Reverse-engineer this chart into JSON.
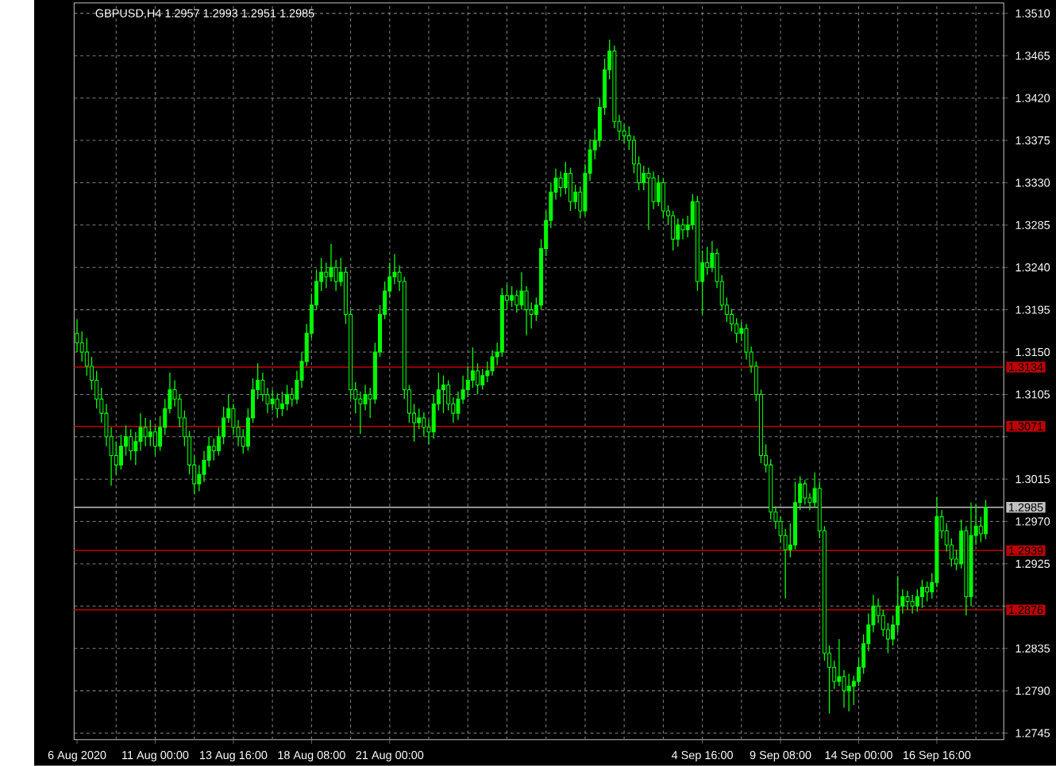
{
  "chart_data": {
    "type": "candlestick",
    "title": "GBPUSD,H4  1.2957 1.2993 1.2951 1.2985",
    "color": "#00ff00",
    "grid": true,
    "categories": [
      "6 Aug 2020",
      null,
      null,
      null,
      null,
      null,
      null,
      null,
      null,
      null,
      null,
      null,
      null,
      null,
      null,
      null,
      "11 Aug 00:00",
      null,
      null,
      null,
      null,
      null,
      null,
      null,
      null,
      null,
      null,
      null,
      null,
      null,
      null,
      null,
      "13 Aug 16:00",
      null,
      null,
      null,
      null,
      null,
      null,
      null,
      null,
      null,
      null,
      null,
      null,
      null,
      null,
      null,
      "18 Aug 08:00",
      null,
      null,
      null,
      null,
      null,
      null,
      null,
      null,
      null,
      null,
      null,
      null,
      null,
      null,
      null,
      "21 Aug 00:00",
      null,
      null,
      null,
      null,
      null,
      null,
      null,
      null,
      null,
      null,
      null,
      null,
      null,
      null,
      null,
      null,
      null,
      null,
      null,
      null,
      null,
      null,
      null,
      null,
      null,
      null,
      null,
      null,
      null,
      null,
      null,
      null,
      null,
      null,
      null,
      null,
      null,
      null,
      null,
      null,
      null,
      null,
      null,
      null,
      null,
      null,
      null,
      null,
      null,
      null,
      null,
      null,
      null,
      null,
      null,
      null,
      null,
      null,
      null,
      null,
      null,
      null,
      null,
      "4 Sep 16:00",
      null,
      null,
      null,
      null,
      null,
      null,
      null,
      null,
      null,
      null,
      null,
      null,
      null,
      null,
      null,
      "9 Sep 08:00",
      null,
      null,
      null,
      null,
      null,
      null,
      null,
      null,
      null,
      null,
      null,
      null,
      null,
      null,
      null,
      "14 Sep 00:00",
      null,
      null,
      null,
      null,
      null,
      null,
      null,
      null,
      null,
      null,
      null,
      null,
      null,
      null,
      null,
      "16 Sep 16:00",
      null,
      null,
      null,
      null,
      null,
      null,
      null,
      null,
      null,
      null
    ],
    "ohlc": [
      [
        1.317,
        1.3185,
        1.315,
        1.316
      ],
      [
        1.316,
        1.3172,
        1.314,
        1.315
      ],
      [
        1.315,
        1.3165,
        1.3125,
        1.3135
      ],
      [
        1.3135,
        1.3145,
        1.311,
        1.312
      ],
      [
        1.312,
        1.313,
        1.309,
        1.31
      ],
      [
        1.31,
        1.3112,
        1.3075,
        1.3085
      ],
      [
        1.3085,
        1.3095,
        1.305,
        1.306
      ],
      [
        1.306,
        1.307,
        1.3008,
        1.304
      ],
      [
        1.304,
        1.3055,
        1.302,
        1.303
      ],
      [
        1.303,
        1.3062,
        1.3025,
        1.305
      ],
      [
        1.305,
        1.3072,
        1.304,
        1.306
      ],
      [
        1.306,
        1.3068,
        1.3035,
        1.3045
      ],
      [
        1.3045,
        1.3065,
        1.303,
        1.3055
      ],
      [
        1.3055,
        1.3085,
        1.3045,
        1.307
      ],
      [
        1.307,
        1.308,
        1.305,
        1.306
      ],
      [
        1.306,
        1.3078,
        1.305,
        1.3065
      ],
      [
        1.3065,
        1.3072,
        1.304,
        1.305
      ],
      [
        1.305,
        1.3082,
        1.3045,
        1.307
      ],
      [
        1.307,
        1.31,
        1.3062,
        1.309
      ],
      [
        1.309,
        1.3128,
        1.3085,
        1.311
      ],
      [
        1.311,
        1.312,
        1.3092,
        1.31
      ],
      [
        1.31,
        1.3105,
        1.307,
        1.308
      ],
      [
        1.308,
        1.3088,
        1.305,
        1.306
      ],
      [
        1.306,
        1.3066,
        1.302,
        1.303
      ],
      [
        1.303,
        1.304,
        1.2999,
        1.301
      ],
      [
        1.301,
        1.303,
        1.3002,
        1.302
      ],
      [
        1.302,
        1.3045,
        1.3012,
        1.3035
      ],
      [
        1.3035,
        1.306,
        1.3028,
        1.305
      ],
      [
        1.305,
        1.3058,
        1.3035,
        1.3045
      ],
      [
        1.3045,
        1.307,
        1.304,
        1.306
      ],
      [
        1.306,
        1.3092,
        1.3052,
        1.308
      ],
      [
        1.308,
        1.3105,
        1.3075,
        1.309
      ],
      [
        1.309,
        1.3095,
        1.3062,
        1.307
      ],
      [
        1.307,
        1.3078,
        1.305,
        1.306
      ],
      [
        1.306,
        1.3068,
        1.3042,
        1.305
      ],
      [
        1.305,
        1.309,
        1.3045,
        1.308
      ],
      [
        1.308,
        1.3122,
        1.3075,
        1.311
      ],
      [
        1.311,
        1.3138,
        1.31,
        1.312
      ],
      [
        1.312,
        1.3128,
        1.3098,
        1.3105
      ],
      [
        1.3105,
        1.3112,
        1.3085,
        1.3095
      ],
      [
        1.3095,
        1.311,
        1.3088,
        1.31
      ],
      [
        1.31,
        1.3106,
        1.308,
        1.309
      ],
      [
        1.309,
        1.3108,
        1.3082,
        1.3095
      ],
      [
        1.3095,
        1.3115,
        1.3088,
        1.3105
      ],
      [
        1.3105,
        1.3112,
        1.3092,
        1.31
      ],
      [
        1.31,
        1.313,
        1.3095,
        1.312
      ],
      [
        1.312,
        1.315,
        1.3112,
        1.314
      ],
      [
        1.314,
        1.318,
        1.3135,
        1.317
      ],
      [
        1.317,
        1.3212,
        1.3165,
        1.32
      ],
      [
        1.32,
        1.3238,
        1.3195,
        1.3225
      ],
      [
        1.3225,
        1.325,
        1.3215,
        1.3235
      ],
      [
        1.3235,
        1.3245,
        1.3218,
        1.323
      ],
      [
        1.323,
        1.3265,
        1.3225,
        1.324
      ],
      [
        1.324,
        1.3248,
        1.3215,
        1.3225
      ],
      [
        1.3225,
        1.325,
        1.322,
        1.3235
      ],
      [
        1.3235,
        1.324,
        1.318,
        1.319
      ],
      [
        1.319,
        1.3195,
        1.31,
        1.311
      ],
      [
        1.311,
        1.3118,
        1.3085,
        1.31
      ],
      [
        1.31,
        1.3108,
        1.3063,
        1.3095
      ],
      [
        1.3095,
        1.3115,
        1.3088,
        1.3105
      ],
      [
        1.3105,
        1.3112,
        1.308,
        1.31
      ],
      [
        1.31,
        1.316,
        1.3095,
        1.315
      ],
      [
        1.315,
        1.32,
        1.3145,
        1.319
      ],
      [
        1.319,
        1.3225,
        1.3185,
        1.3215
      ],
      [
        1.3215,
        1.3245,
        1.3208,
        1.323
      ],
      [
        1.323,
        1.3254,
        1.3222,
        1.3235
      ],
      [
        1.3235,
        1.3242,
        1.3215,
        1.3225
      ],
      [
        1.3225,
        1.323,
        1.31,
        1.311
      ],
      [
        1.311,
        1.3115,
        1.3075,
        1.3085
      ],
      [
        1.3085,
        1.3095,
        1.3055,
        1.3075
      ],
      [
        1.3075,
        1.309,
        1.3068,
        1.308
      ],
      [
        1.308,
        1.3086,
        1.306,
        1.307
      ],
      [
        1.307,
        1.3078,
        1.3052,
        1.3065
      ],
      [
        1.3065,
        1.3105,
        1.3058,
        1.3095
      ],
      [
        1.3095,
        1.3128,
        1.3088,
        1.311
      ],
      [
        1.311,
        1.3125,
        1.3085,
        1.3115
      ],
      [
        1.3115,
        1.312,
        1.3088,
        1.3095
      ],
      [
        1.3095,
        1.3102,
        1.3075,
        1.3085
      ],
      [
        1.3085,
        1.3108,
        1.3078,
        1.31
      ],
      [
        1.31,
        1.3125,
        1.3095,
        1.311
      ],
      [
        1.311,
        1.3135,
        1.3102,
        1.312
      ],
      [
        1.312,
        1.3155,
        1.3112,
        1.313
      ],
      [
        1.313,
        1.3138,
        1.3105,
        1.3115
      ],
      [
        1.3115,
        1.3132,
        1.311,
        1.3125
      ],
      [
        1.3125,
        1.314,
        1.3118,
        1.313
      ],
      [
        1.313,
        1.3152,
        1.3125,
        1.3145
      ],
      [
        1.3145,
        1.316,
        1.3136,
        1.315
      ],
      [
        1.315,
        1.3218,
        1.3145,
        1.321
      ],
      [
        1.321,
        1.3222,
        1.3195,
        1.3205
      ],
      [
        1.3205,
        1.322,
        1.3198,
        1.321
      ],
      [
        1.321,
        1.3216,
        1.3192,
        1.32
      ],
      [
        1.32,
        1.3235,
        1.3195,
        1.3215
      ],
      [
        1.3215,
        1.322,
        1.3168,
        1.3195
      ],
      [
        1.3195,
        1.3203,
        1.3175,
        1.319
      ],
      [
        1.319,
        1.3208,
        1.3183,
        1.32
      ],
      [
        1.32,
        1.327,
        1.3195,
        1.326
      ],
      [
        1.326,
        1.33,
        1.3252,
        1.329
      ],
      [
        1.329,
        1.333,
        1.3282,
        1.332
      ],
      [
        1.332,
        1.3345,
        1.3312,
        1.3335
      ],
      [
        1.3335,
        1.3342,
        1.3315,
        1.3325
      ],
      [
        1.3325,
        1.3352,
        1.3318,
        1.334
      ],
      [
        1.334,
        1.3346,
        1.33,
        1.331
      ],
      [
        1.331,
        1.3328,
        1.3302,
        1.332
      ],
      [
        1.332,
        1.3326,
        1.3292,
        1.33
      ],
      [
        1.33,
        1.335,
        1.3295,
        1.334
      ],
      [
        1.334,
        1.3376,
        1.3332,
        1.3365
      ],
      [
        1.3365,
        1.3387,
        1.3355,
        1.3375
      ],
      [
        1.3375,
        1.342,
        1.3368,
        1.341
      ],
      [
        1.341,
        1.3462,
        1.3402,
        1.345
      ],
      [
        1.345,
        1.3482,
        1.344,
        1.347
      ],
      [
        1.347,
        1.3476,
        1.3388,
        1.3395
      ],
      [
        1.3395,
        1.3402,
        1.3375,
        1.3385
      ],
      [
        1.3385,
        1.3392,
        1.3372,
        1.338
      ],
      [
        1.338,
        1.339,
        1.3365,
        1.3375
      ],
      [
        1.3375,
        1.338,
        1.334,
        1.335
      ],
      [
        1.335,
        1.3358,
        1.3322,
        1.333
      ],
      [
        1.333,
        1.3348,
        1.3322,
        1.334
      ],
      [
        1.334,
        1.3346,
        1.328,
        1.3335
      ],
      [
        1.3335,
        1.3342,
        1.3302,
        1.331
      ],
      [
        1.331,
        1.3338,
        1.3305,
        1.333
      ],
      [
        1.333,
        1.3335,
        1.3292,
        1.33
      ],
      [
        1.33,
        1.3306,
        1.3285,
        1.3295
      ],
      [
        1.3295,
        1.33,
        1.3258,
        1.327
      ],
      [
        1.327,
        1.3292,
        1.3262,
        1.3285
      ],
      [
        1.3285,
        1.3292,
        1.327,
        1.328
      ],
      [
        1.328,
        1.3295,
        1.3272,
        1.3285
      ],
      [
        1.3285,
        1.3318,
        1.328,
        1.331
      ],
      [
        1.331,
        1.3316,
        1.3215,
        1.3225
      ],
      [
        1.3225,
        1.3258,
        1.319,
        1.3245
      ],
      [
        1.3245,
        1.3262,
        1.3232,
        1.324
      ],
      [
        1.324,
        1.3268,
        1.3235,
        1.3255
      ],
      [
        1.3255,
        1.326,
        1.3218,
        1.3225
      ],
      [
        1.3225,
        1.3232,
        1.3195,
        1.32
      ],
      [
        1.32,
        1.3208,
        1.3182,
        1.319
      ],
      [
        1.319,
        1.3196,
        1.3172,
        1.318
      ],
      [
        1.318,
        1.3186,
        1.316,
        1.317
      ],
      [
        1.317,
        1.3182,
        1.3162,
        1.3175
      ],
      [
        1.3175,
        1.318,
        1.3142,
        1.315
      ],
      [
        1.315,
        1.3156,
        1.3128,
        1.3135
      ],
      [
        1.3135,
        1.314,
        1.3098,
        1.3105
      ],
      [
        1.3105,
        1.311,
        1.3032,
        1.304
      ],
      [
        1.304,
        1.3052,
        1.3022,
        1.303
      ],
      [
        1.303,
        1.3036,
        1.2972,
        1.298
      ],
      [
        1.298,
        1.2986,
        1.2962,
        1.297
      ],
      [
        1.297,
        1.2975,
        1.2948,
        1.2955
      ],
      [
        1.2955,
        1.2962,
        1.2888,
        1.294
      ],
      [
        1.294,
        1.2968,
        1.2932,
        1.2945
      ],
      [
        1.2945,
        1.3012,
        1.294,
        1.299
      ],
      [
        1.299,
        1.3018,
        1.2982,
        1.301
      ],
      [
        1.301,
        1.3014,
        1.2988,
        1.2995
      ],
      [
        1.2995,
        1.3,
        1.2982,
        1.299
      ],
      [
        1.299,
        1.3022,
        1.2985,
        1.3005
      ],
      [
        1.3005,
        1.3012,
        1.2952,
        1.296
      ],
      [
        1.296,
        1.2965,
        1.2822,
        1.283
      ],
      [
        1.283,
        1.2838,
        1.2766,
        1.2815
      ],
      [
        1.2815,
        1.2822,
        1.2792,
        1.28
      ],
      [
        1.28,
        1.2845,
        1.2795,
        1.2805
      ],
      [
        1.2805,
        1.2812,
        1.2772,
        1.279
      ],
      [
        1.279,
        1.2808,
        1.2768,
        1.2795
      ],
      [
        1.2795,
        1.2806,
        1.2775,
        1.28
      ],
      [
        1.28,
        1.2825,
        1.2795,
        1.2815
      ],
      [
        1.2815,
        1.285,
        1.2808,
        1.284
      ],
      [
        1.284,
        1.2872,
        1.2832,
        1.286
      ],
      [
        1.286,
        1.2892,
        1.2852,
        1.288
      ],
      [
        1.288,
        1.2888,
        1.2862,
        1.287
      ],
      [
        1.287,
        1.2876,
        1.2848,
        1.2855
      ],
      [
        1.2855,
        1.2862,
        1.283,
        1.2845
      ],
      [
        1.2845,
        1.287,
        1.2838,
        1.286
      ],
      [
        1.286,
        1.2912,
        1.2852,
        1.288
      ],
      [
        1.288,
        1.2898,
        1.2872,
        1.289
      ],
      [
        1.289,
        1.2896,
        1.2876,
        1.2885
      ],
      [
        1.2885,
        1.2892,
        1.2872,
        1.288
      ],
      [
        1.288,
        1.2898,
        1.2874,
        1.289
      ],
      [
        1.289,
        1.2908,
        1.2878,
        1.29
      ],
      [
        1.29,
        1.2906,
        1.2885,
        1.2895
      ],
      [
        1.2895,
        1.2915,
        1.2888,
        1.2905
      ],
      [
        1.2905,
        1.2996,
        1.29,
        1.2975
      ],
      [
        1.2975,
        1.2982,
        1.2952,
        1.296
      ],
      [
        1.296,
        1.2968,
        1.2938,
        1.2945
      ],
      [
        1.2945,
        1.2952,
        1.2922,
        1.293
      ],
      [
        1.293,
        1.294,
        1.2918,
        1.2925
      ],
      [
        1.2925,
        1.2972,
        1.292,
        1.296
      ],
      [
        1.296,
        1.2965,
        1.287,
        1.289
      ],
      [
        1.289,
        1.299,
        1.288,
        1.2955
      ],
      [
        1.2955,
        1.2988,
        1.2945,
        1.2965
      ],
      [
        1.2965,
        1.2975,
        1.2948,
        1.2957
      ],
      [
        1.2957,
        1.2993,
        1.2951,
        1.2985
      ]
    ],
    "ylim": [
      1.2738,
      1.3521
    ],
    "yticks": [
      1.2745,
      {
        "value": 1.279,
        "label": "1.2790"
      },
      1.2835,
      {
        "value": 1.288,
        "label": null
      },
      1.2925,
      {
        "value": 1.297,
        "label": "1.2970"
      },
      1.3015,
      {
        "value": 1.306,
        "label": null
      },
      1.3105,
      {
        "value": 1.315,
        "label": "1.3150"
      },
      1.3195,
      {
        "value": 1.324,
        "label": "1.3240"
      },
      1.3285,
      {
        "value": 1.333,
        "label": "1.3330"
      },
      1.3375,
      {
        "value": 1.342,
        "label": "1.3420"
      },
      1.3465,
      {
        "value": 1.351,
        "label": "1.3510"
      }
    ],
    "ref_lines": [
      {
        "axis": "y",
        "value": 1.3134,
        "label": "1.3134",
        "color": "#c00000"
      },
      {
        "axis": "y",
        "value": 1.3071,
        "label": "1.3071",
        "color": "#c00000"
      },
      {
        "axis": "y",
        "value": 1.2985,
        "label": "1.2985",
        "color": "#c0c0c0"
      },
      {
        "axis": "y",
        "value": 1.2939,
        "label": "1.2939",
        "color": "#c00000"
      },
      {
        "axis": "y",
        "value": 1.2876,
        "label": "1.2876",
        "color": "#c00000"
      }
    ]
  }
}
